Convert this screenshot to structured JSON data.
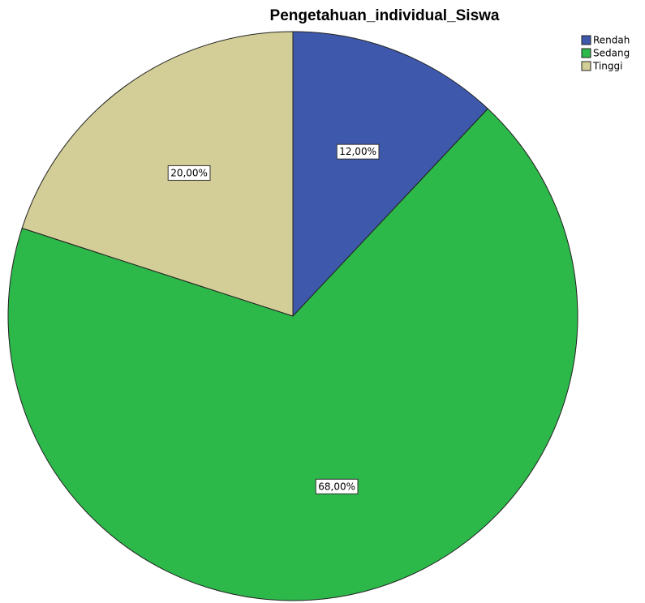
{
  "chart_data": {
    "type": "pie",
    "title": "Pengetahuan_individual_Siswa",
    "categories": [
      "Rendah",
      "Sedang",
      "Tinggi"
    ],
    "values": [
      12,
      68,
      20
    ],
    "value_labels": [
      "12,00%",
      "68,00%",
      "20,00%"
    ],
    "colors": [
      "#3e58ac",
      "#2db84a",
      "#d3ce97"
    ],
    "legend": "top-right"
  }
}
